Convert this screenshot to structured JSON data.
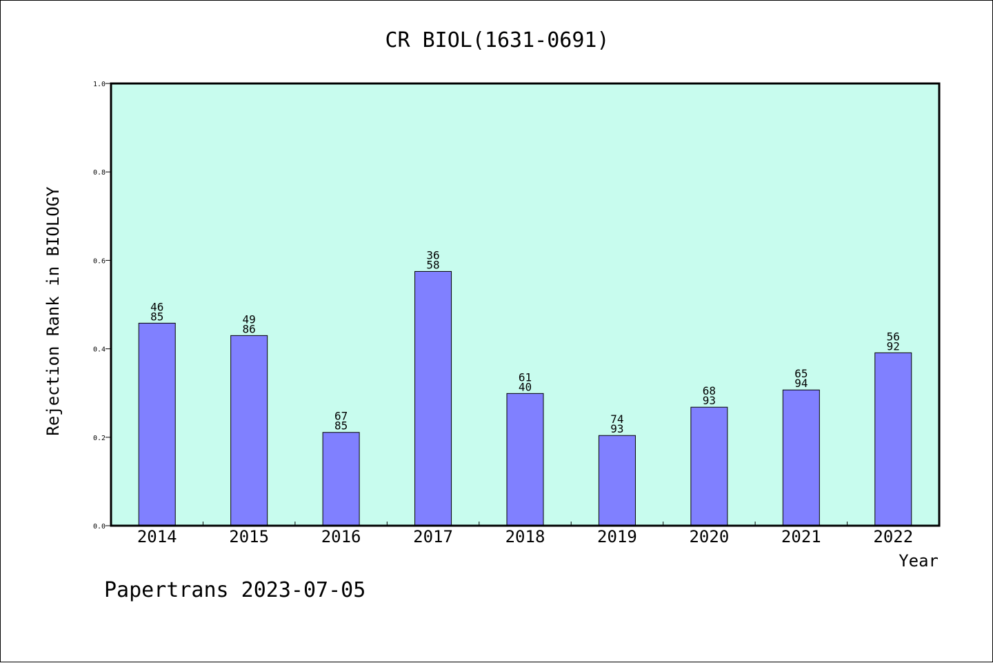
{
  "chart_data": {
    "type": "bar",
    "title": "CR BIOL(1631-0691)",
    "xlabel": "Year",
    "ylabel": "Rejection Rank in BIOLOGY",
    "categories": [
      "2014",
      "2015",
      "2016",
      "2017",
      "2018",
      "2019",
      "2020",
      "2021",
      "2022"
    ],
    "values": [
      0.458,
      0.43,
      0.211,
      0.575,
      0.299,
      0.204,
      0.268,
      0.307,
      0.391
    ],
    "bar_labels": [
      [
        "46",
        "85"
      ],
      [
        "49",
        "86"
      ],
      [
        "67",
        "85"
      ],
      [
        "36",
        "58"
      ],
      [
        "61",
        "40"
      ],
      [
        "74",
        "93"
      ],
      [
        "68",
        "93"
      ],
      [
        "65",
        "94"
      ],
      [
        "56",
        "92"
      ]
    ],
    "ylim": [
      0.0,
      1.0
    ],
    "yticks": [
      "0.0",
      "0.2",
      "0.4",
      "0.6",
      "0.8",
      "1.0"
    ],
    "grid": false,
    "colors": {
      "bar_fill": "#8080ff",
      "plot_background": "#c8fcee",
      "bar_edge": "#000000"
    }
  },
  "footer": {
    "text": "Papertrans 2023-07-05"
  }
}
